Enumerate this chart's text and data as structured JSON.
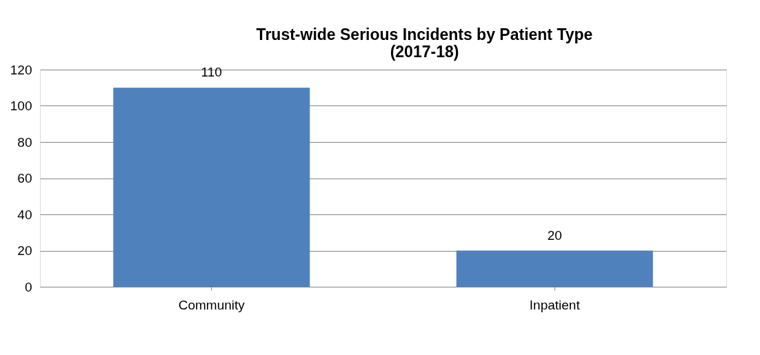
{
  "chart_data": {
    "type": "bar",
    "title": "Trust-wide Serious Incidents by Patient Type\n(2017-18)",
    "categories": [
      "Community",
      "Inpatient"
    ],
    "values": [
      110,
      20
    ],
    "color": "#4f81bd",
    "ylim": [
      0,
      120
    ],
    "yticks": [
      0,
      20,
      40,
      60,
      80,
      100,
      120
    ],
    "grid": "y",
    "data_labels": true
  }
}
